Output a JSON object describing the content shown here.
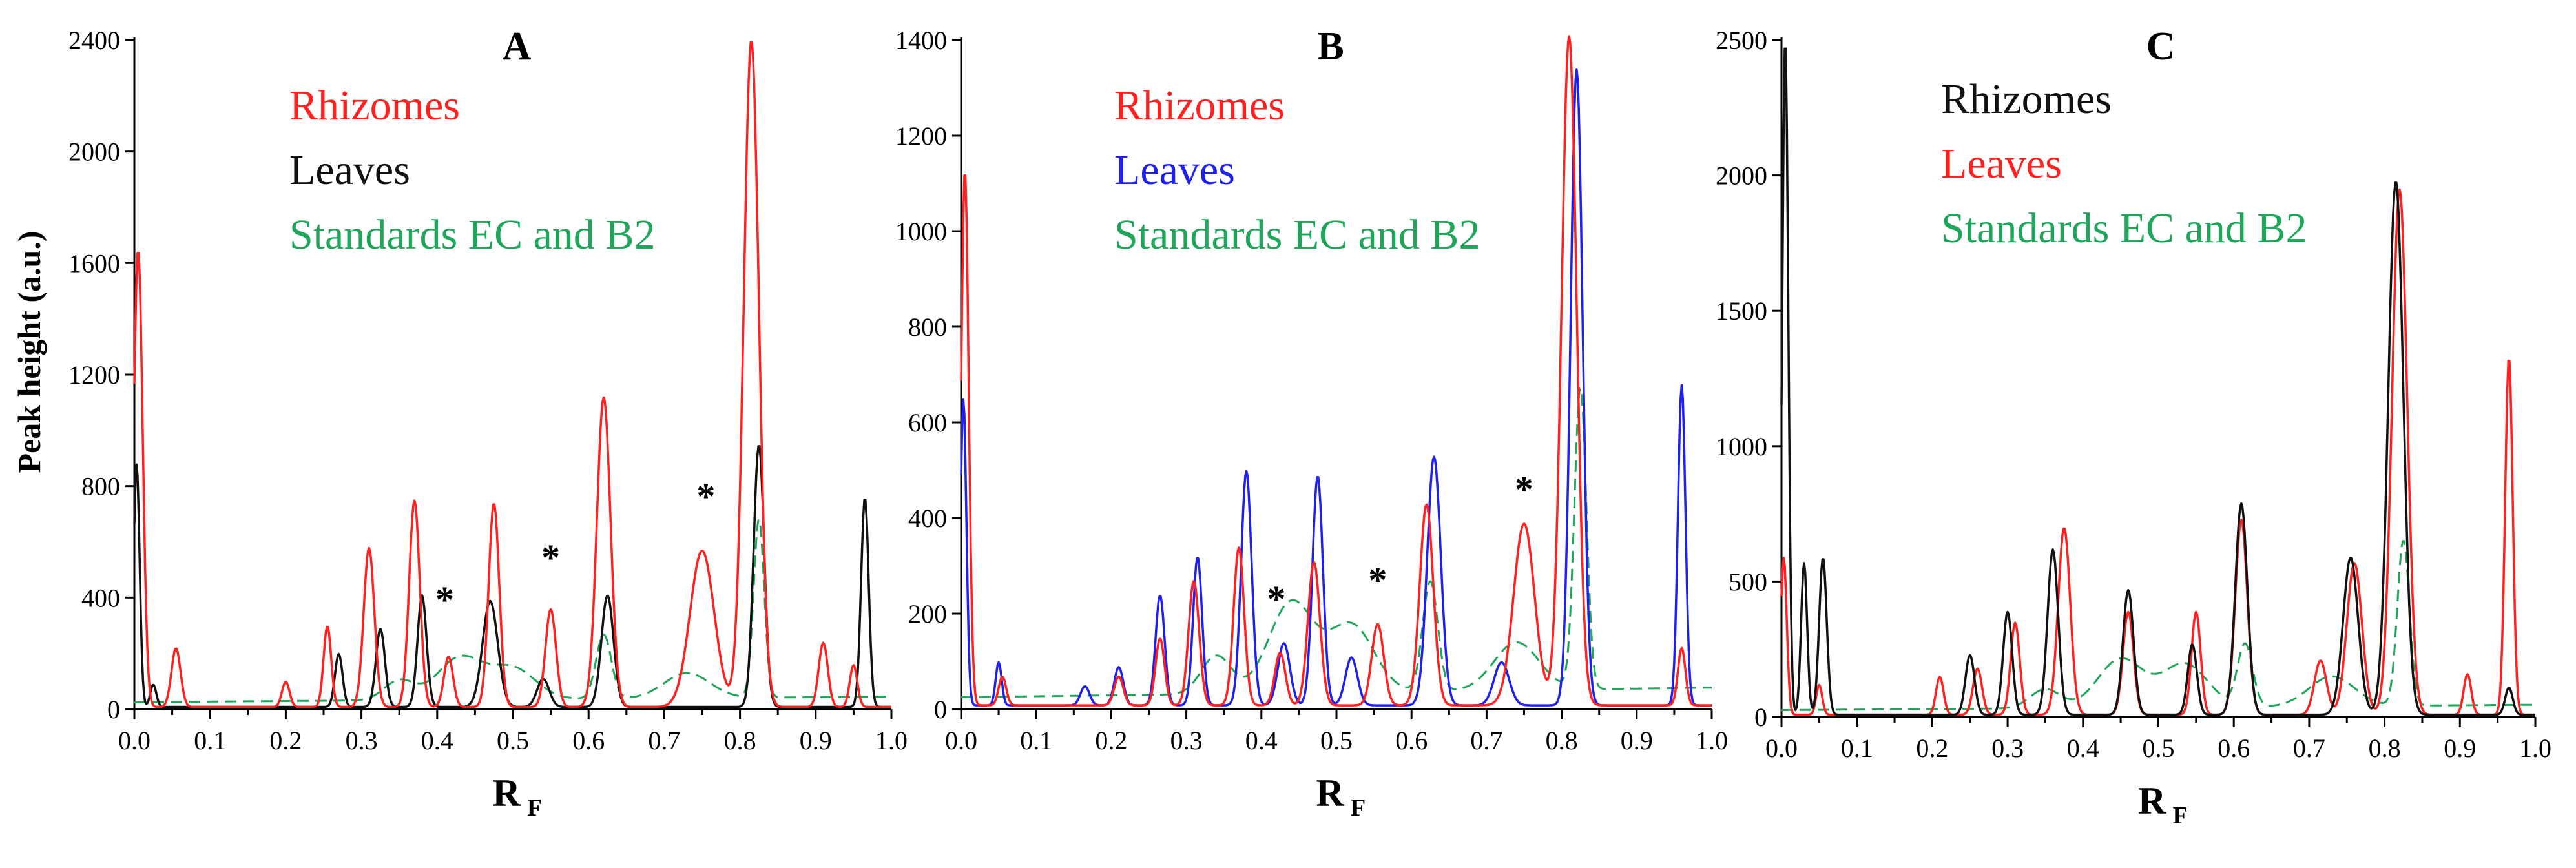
{
  "figure": {
    "ylabel": "Peak height (a.u.)",
    "xlabel_main": "R",
    "xlabel_sub": "F"
  },
  "chart_data": [
    {
      "type": "line",
      "title": "A",
      "xlabel": "RF",
      "ylabel": "Peak height (a.u.)",
      "xlim": [
        0,
        1
      ],
      "ylim": [
        0,
        2400
      ],
      "x_ticks": [
        "0.0",
        "0.1",
        "0.2",
        "0.3",
        "0.4",
        "0.5",
        "0.6",
        "0.7",
        "0.8",
        "0.9",
        "1.0"
      ],
      "y_ticks": [
        "0",
        "400",
        "800",
        "1200",
        "1600",
        "2000",
        "2400"
      ],
      "grid": false,
      "legend_position": "top-left",
      "annotations": [
        {
          "text": "*",
          "x": 0.41,
          "y": 290
        },
        {
          "text": "*",
          "x": 0.55,
          "y": 440
        },
        {
          "text": "*",
          "x": 0.755,
          "y": 660
        }
      ],
      "series": [
        {
          "name": "Rhizomes",
          "color": "#ff2020",
          "style": "solid",
          "peaks": [
            [
              0.005,
              1640,
              0.006
            ],
            [
              0.055,
              210,
              0.006
            ],
            [
              0.2,
              90,
              0.005
            ],
            [
              0.255,
              290,
              0.005
            ],
            [
              0.31,
              570,
              0.007
            ],
            [
              0.37,
              740,
              0.007
            ],
            [
              0.415,
              180,
              0.006
            ],
            [
              0.475,
              730,
              0.007
            ],
            [
              0.55,
              350,
              0.007
            ],
            [
              0.62,
              1110,
              0.009
            ],
            [
              0.75,
              560,
              0.016
            ],
            [
              0.815,
              2390,
              0.01
            ],
            [
              0.91,
              230,
              0.006
            ],
            [
              0.95,
              150,
              0.005
            ]
          ]
        },
        {
          "name": "Leaves",
          "color": "#111111",
          "style": "solid",
          "peaks": [
            [
              0.003,
              870,
              0.004
            ],
            [
              0.025,
              80,
              0.004
            ],
            [
              0.27,
              190,
              0.005
            ],
            [
              0.325,
              280,
              0.006
            ],
            [
              0.38,
              400,
              0.006
            ],
            [
              0.47,
              380,
              0.01
            ],
            [
              0.54,
              100,
              0.008
            ],
            [
              0.625,
              400,
              0.008
            ],
            [
              0.825,
              940,
              0.007
            ],
            [
              0.965,
              750,
              0.005
            ]
          ]
        },
        {
          "name": "Standards EC and B2",
          "color": "#1fa65a",
          "style": "dashed",
          "peaks": [
            [
              0.35,
              70,
              0.02
            ],
            [
              0.43,
              150,
              0.03
            ],
            [
              0.5,
              110,
              0.03
            ],
            [
              0.62,
              230,
              0.01
            ],
            [
              0.73,
              90,
              0.03
            ],
            [
              0.825,
              640,
              0.007
            ]
          ]
        }
      ]
    },
    {
      "type": "line",
      "title": "B",
      "xlabel": "RF",
      "ylabel": "",
      "xlim": [
        0,
        1
      ],
      "ylim": [
        0,
        1400
      ],
      "x_ticks": [
        "0.0",
        "0.1",
        "0.2",
        "0.3",
        "0.4",
        "0.5",
        "0.6",
        "0.7",
        "0.8",
        "0.9",
        "1.0"
      ],
      "y_ticks": [
        "0",
        "200",
        "400",
        "600",
        "800",
        "1000",
        "1200",
        "1400"
      ],
      "grid": false,
      "legend_position": "top-left",
      "annotations": [
        {
          "text": "*",
          "x": 0.42,
          "y": 170
        },
        {
          "text": "*",
          "x": 0.555,
          "y": 210
        },
        {
          "text": "*",
          "x": 0.75,
          "y": 400
        }
      ],
      "series": [
        {
          "name": "Rhizomes",
          "color": "#ff2020",
          "style": "solid",
          "peaks": [
            [
              0.005,
              1120,
              0.005
            ],
            [
              0.055,
              60,
              0.005
            ],
            [
              0.21,
              60,
              0.006
            ],
            [
              0.265,
              140,
              0.006
            ],
            [
              0.31,
              260,
              0.007
            ],
            [
              0.37,
              330,
              0.007
            ],
            [
              0.425,
              110,
              0.007
            ],
            [
              0.47,
              300,
              0.008
            ],
            [
              0.555,
              170,
              0.008
            ],
            [
              0.62,
              420,
              0.009
            ],
            [
              0.75,
              380,
              0.014
            ],
            [
              0.81,
              1400,
              0.01
            ],
            [
              0.96,
              120,
              0.005
            ]
          ]
        },
        {
          "name": "Leaves",
          "color": "#2020ee",
          "style": "solid",
          "peaks": [
            [
              0.003,
              640,
              0.004
            ],
            [
              0.05,
              90,
              0.004
            ],
            [
              0.165,
              40,
              0.006
            ],
            [
              0.21,
              80,
              0.006
            ],
            [
              0.265,
              230,
              0.006
            ],
            [
              0.315,
              310,
              0.006
            ],
            [
              0.38,
              490,
              0.007
            ],
            [
              0.43,
              130,
              0.008
            ],
            [
              0.475,
              480,
              0.007
            ],
            [
              0.52,
              100,
              0.008
            ],
            [
              0.63,
              520,
              0.009
            ],
            [
              0.72,
              90,
              0.01
            ],
            [
              0.82,
              1330,
              0.008
            ],
            [
              0.96,
              670,
              0.005
            ]
          ]
        },
        {
          "name": "Standards EC and B2",
          "color": "#1fa65a",
          "style": "dashed",
          "peaks": [
            [
              0.34,
              80,
              0.02
            ],
            [
              0.44,
              190,
              0.03
            ],
            [
              0.52,
              140,
              0.03
            ],
            [
              0.625,
              230,
              0.01
            ],
            [
              0.74,
              100,
              0.03
            ],
            [
              0.825,
              630,
              0.008
            ]
          ]
        }
      ]
    },
    {
      "type": "line",
      "title": "C",
      "xlabel": "RF",
      "ylabel": "",
      "xlim": [
        0,
        1
      ],
      "ylim": [
        0,
        2500
      ],
      "x_ticks": [
        "0.0",
        "0.1",
        "0.2",
        "0.3",
        "0.4",
        "0.5",
        "0.6",
        "0.7",
        "0.8",
        "0.9",
        "1.0"
      ],
      "y_ticks": [
        "0",
        "500",
        "1000",
        "1500",
        "2000",
        "2500"
      ],
      "grid": false,
      "legend_position": "top-left",
      "annotations": [],
      "series": [
        {
          "name": "Rhizomes",
          "color": "#111111",
          "style": "solid",
          "peaks": [
            [
              0.005,
              2500,
              0.004
            ],
            [
              0.03,
              560,
              0.004
            ],
            [
              0.055,
              580,
              0.005
            ],
            [
              0.25,
              220,
              0.006
            ],
            [
              0.3,
              380,
              0.006
            ],
            [
              0.36,
              610,
              0.007
            ],
            [
              0.46,
              460,
              0.007
            ],
            [
              0.545,
              260,
              0.006
            ],
            [
              0.61,
              780,
              0.008
            ],
            [
              0.755,
              580,
              0.01
            ],
            [
              0.815,
              1970,
              0.01
            ],
            [
              0.965,
              100,
              0.005
            ]
          ]
        },
        {
          "name": "Leaves",
          "color": "#ff2020",
          "style": "solid",
          "peaks": [
            [
              0.003,
              580,
              0.004
            ],
            [
              0.05,
              110,
              0.004
            ],
            [
              0.21,
              140,
              0.005
            ],
            [
              0.26,
              170,
              0.006
            ],
            [
              0.31,
              340,
              0.006
            ],
            [
              0.375,
              690,
              0.008
            ],
            [
              0.46,
              380,
              0.007
            ],
            [
              0.55,
              380,
              0.006
            ],
            [
              0.61,
              720,
              0.008
            ],
            [
              0.715,
              200,
              0.008
            ],
            [
              0.76,
              560,
              0.01
            ],
            [
              0.82,
              1940,
              0.01
            ],
            [
              0.91,
              150,
              0.005
            ],
            [
              0.965,
              1320,
              0.005
            ]
          ]
        },
        {
          "name": "Standards EC and B2",
          "color": "#1fa65a",
          "style": "dashed",
          "peaks": [
            [
              0.35,
              70,
              0.02
            ],
            [
              0.45,
              180,
              0.03
            ],
            [
              0.535,
              160,
              0.03
            ],
            [
              0.615,
              230,
              0.01
            ],
            [
              0.73,
              110,
              0.03
            ],
            [
              0.825,
              610,
              0.008
            ]
          ]
        }
      ]
    }
  ]
}
